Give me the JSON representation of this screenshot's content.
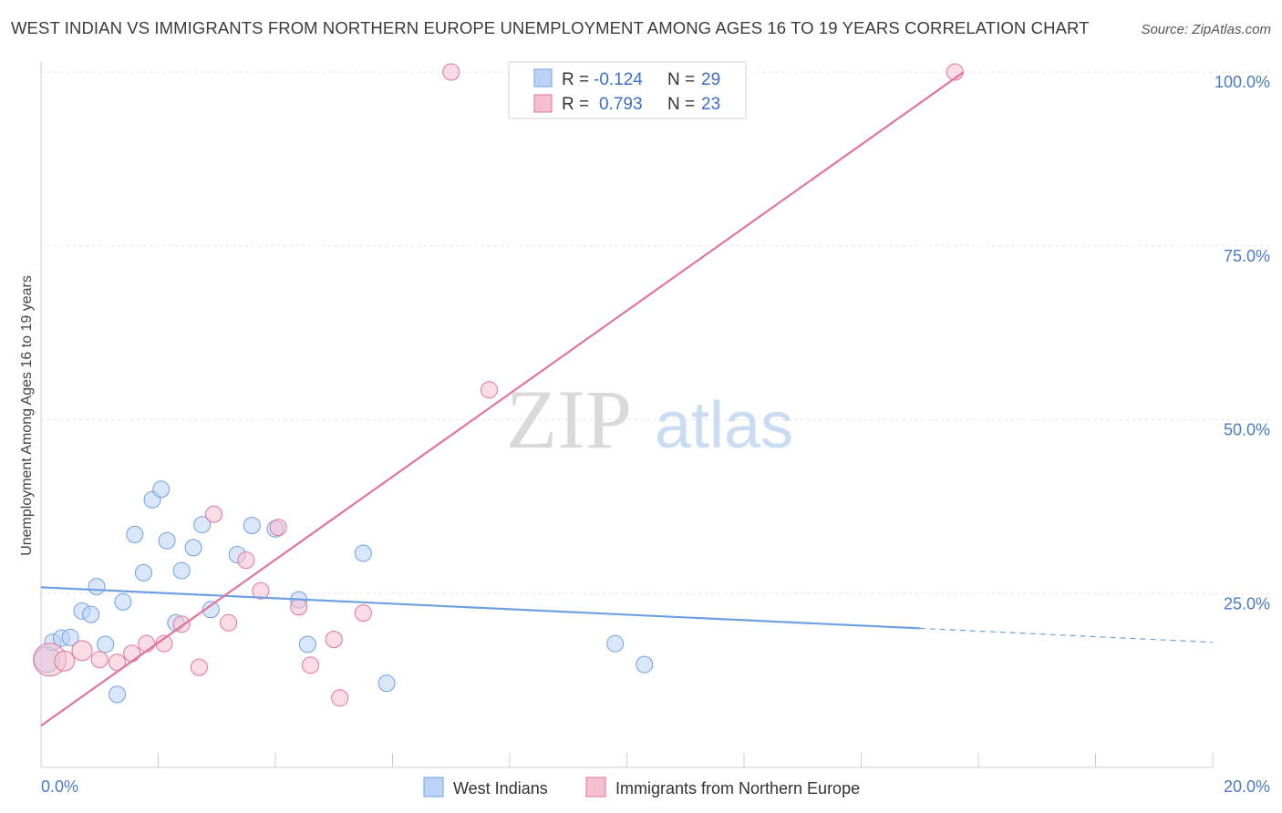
{
  "header": {
    "title": "WEST INDIAN VS IMMIGRANTS FROM NORTHERN EUROPE UNEMPLOYMENT AMONG AGES 16 TO 19 YEARS CORRELATION CHART",
    "source": "Source: ZipAtlas.com"
  },
  "watermark": {
    "zip": "ZIP",
    "atlas": "atlas"
  },
  "legend": {
    "r_label": "R =",
    "n_label": "N =",
    "series": [
      {
        "name": "West Indians",
        "r": "-0.124",
        "n": "29"
      },
      {
        "name": "Immigrants from Northern Europe",
        "r": "0.793",
        "n": "23"
      }
    ]
  },
  "chart_data": {
    "type": "scatter",
    "title": "WEST INDIAN VS IMMIGRANTS FROM NORTHERN EUROPE UNEMPLOYMENT AMONG AGES 16 TO 19 YEARS CORRELATION CHART",
    "xlabel": "",
    "ylabel": "Unemployment Among Ages 16 to 19 years",
    "xlim": [
      0,
      20
    ],
    "ylim": [
      0,
      100
    ],
    "x_tick_labels": [
      "0.0%",
      "20.0%"
    ],
    "y_ticks": [
      25,
      50,
      75,
      100
    ],
    "y_tick_labels": [
      "25.0%",
      "50.0%",
      "75.0%",
      "100.0%"
    ],
    "legend_position": "top-center",
    "series": [
      {
        "name": "West Indians",
        "color": "#6fa0e0",
        "fill": "#bcd3f5",
        "points": [
          {
            "x": 0.1,
            "y": 15.5,
            "size": 14
          },
          {
            "x": 0.2,
            "y": 18.0,
            "size": 9
          },
          {
            "x": 0.35,
            "y": 18.6,
            "size": 9
          },
          {
            "x": 0.5,
            "y": 18.7,
            "size": 9
          },
          {
            "x": 0.7,
            "y": 22.5,
            "size": 9
          },
          {
            "x": 0.85,
            "y": 22.0,
            "size": 9
          },
          {
            "x": 0.95,
            "y": 26.0,
            "size": 9
          },
          {
            "x": 1.1,
            "y": 17.7,
            "size": 9
          },
          {
            "x": 1.3,
            "y": 10.5,
            "size": 9
          },
          {
            "x": 1.4,
            "y": 23.8,
            "size": 9
          },
          {
            "x": 1.6,
            "y": 33.5,
            "size": 9
          },
          {
            "x": 1.75,
            "y": 28.0,
            "size": 9
          },
          {
            "x": 1.9,
            "y": 38.5,
            "size": 9
          },
          {
            "x": 2.05,
            "y": 40.0,
            "size": 9
          },
          {
            "x": 2.15,
            "y": 32.6,
            "size": 9
          },
          {
            "x": 2.3,
            "y": 20.8,
            "size": 9
          },
          {
            "x": 2.4,
            "y": 28.3,
            "size": 9
          },
          {
            "x": 2.6,
            "y": 31.6,
            "size": 9
          },
          {
            "x": 2.75,
            "y": 34.9,
            "size": 9
          },
          {
            "x": 2.9,
            "y": 22.7,
            "size": 9
          },
          {
            "x": 3.35,
            "y": 30.6,
            "size": 9
          },
          {
            "x": 3.6,
            "y": 34.8,
            "size": 9
          },
          {
            "x": 4.0,
            "y": 34.3,
            "size": 9
          },
          {
            "x": 4.4,
            "y": 24.1,
            "size": 9
          },
          {
            "x": 4.55,
            "y": 17.7,
            "size": 9
          },
          {
            "x": 5.5,
            "y": 30.8,
            "size": 9
          },
          {
            "x": 5.9,
            "y": 12.1,
            "size": 9
          },
          {
            "x": 9.8,
            "y": 17.8,
            "size": 9
          },
          {
            "x": 10.3,
            "y": 14.8,
            "size": 9
          }
        ],
        "trend": {
          "x0": 0,
          "y0": 25.9,
          "x1": 15.0,
          "y1": 20.0,
          "dash_to_x": 20,
          "dash_to_y": 18.0
        }
      },
      {
        "name": "Immigrants from Northern Europe",
        "color": "#e3739a",
        "fill": "#f6bfd0",
        "points": [
          {
            "x": 0.15,
            "y": 15.5,
            "size": 18
          },
          {
            "x": 0.4,
            "y": 15.3,
            "size": 11
          },
          {
            "x": 0.7,
            "y": 16.8,
            "size": 11
          },
          {
            "x": 1.0,
            "y": 15.5,
            "size": 9
          },
          {
            "x": 1.3,
            "y": 15.1,
            "size": 9
          },
          {
            "x": 1.55,
            "y": 16.4,
            "size": 9
          },
          {
            "x": 1.8,
            "y": 17.8,
            "size": 9
          },
          {
            "x": 2.1,
            "y": 17.8,
            "size": 9
          },
          {
            "x": 2.4,
            "y": 20.6,
            "size": 9
          },
          {
            "x": 2.7,
            "y": 14.4,
            "size": 9
          },
          {
            "x": 2.95,
            "y": 36.4,
            "size": 9
          },
          {
            "x": 3.2,
            "y": 20.8,
            "size": 9
          },
          {
            "x": 3.5,
            "y": 29.8,
            "size": 9
          },
          {
            "x": 3.75,
            "y": 25.4,
            "size": 9
          },
          {
            "x": 4.05,
            "y": 34.5,
            "size": 9
          },
          {
            "x": 4.4,
            "y": 23.1,
            "size": 9
          },
          {
            "x": 4.6,
            "y": 14.7,
            "size": 9
          },
          {
            "x": 5.0,
            "y": 18.4,
            "size": 9
          },
          {
            "x": 5.1,
            "y": 10.0,
            "size": 9
          },
          {
            "x": 5.5,
            "y": 22.2,
            "size": 9
          },
          {
            "x": 7.0,
            "y": 100.0,
            "size": 9
          },
          {
            "x": 7.65,
            "y": 54.3,
            "size": 9
          },
          {
            "x": 15.6,
            "y": 100.0,
            "size": 9
          }
        ],
        "trend": {
          "x0": 0,
          "y0": 6.0,
          "x1": 15.75,
          "y1": 100.0
        }
      }
    ]
  }
}
